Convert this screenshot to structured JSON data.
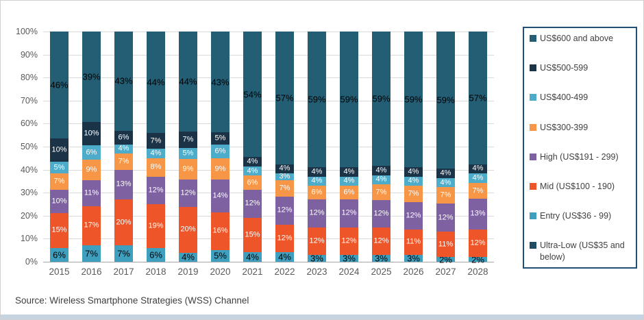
{
  "source_line": "Source: Wireless Smartphone Strategies (WSS) Channel",
  "colors": {
    "legend_border": "#1f4e79",
    "gridline": "#d9d9d9",
    "axis_line": "#a6a6a6",
    "tick_text": "#595959",
    "source_text": "#3f3f3f",
    "window_strip": "#c6d3e1"
  },
  "chart_data": {
    "type": "bar",
    "subtype": "stacked-100-percent",
    "title": "",
    "xlabel": "",
    "ylabel": "",
    "ylim": [
      0,
      100
    ],
    "grid": true,
    "legend_position": "right",
    "y_ticks": [
      "0%",
      "10%",
      "20%",
      "30%",
      "40%",
      "50%",
      "60%",
      "70%",
      "80%",
      "90%",
      "100%"
    ],
    "categories": [
      "2015",
      "2016",
      "2017",
      "2018",
      "2019",
      "2020",
      "2021",
      "2022",
      "2023",
      "2024",
      "2025",
      "2026",
      "2027",
      "2028"
    ],
    "series": [
      {
        "name": "Ultra-Low (US$35 and below)",
        "color": "#1f4c63",
        "label_color": "#ffffff",
        "values": [
          0,
          0,
          0,
          0,
          0,
          0,
          0,
          0,
          0,
          0,
          0,
          0,
          0,
          0
        ]
      },
      {
        "name": "Entry (US$36 - 99)",
        "color": "#3f9fbf",
        "label_color": "#000000",
        "values": [
          6,
          7,
          7,
          6,
          4,
          5,
          4,
          4,
          3,
          3,
          3,
          3,
          2,
          2
        ]
      },
      {
        "name": "Mid (US$100 - 190)",
        "color": "#ee5629",
        "label_color": "#ffffff",
        "values": [
          15,
          17,
          20,
          19,
          20,
          16,
          15,
          12,
          12,
          12,
          12,
          11,
          11,
          12
        ]
      },
      {
        "name": "High (US$191 - 299)",
        "color": "#7d61a0",
        "label_color": "#ffffff",
        "values": [
          10,
          11,
          13,
          12,
          12,
          14,
          12,
          12,
          12,
          12,
          12,
          12,
          12,
          13
        ]
      },
      {
        "name": "US$300-399",
        "color": "#f79646",
        "label_color": "#ffffff",
        "values": [
          7,
          9,
          7,
          8,
          9,
          9,
          6,
          7,
          6,
          6,
          7,
          7,
          7,
          7
        ]
      },
      {
        "name": "US$400-499",
        "color": "#4dacca",
        "label_color": "#ffffff",
        "values": [
          5,
          6,
          4,
          4,
          5,
          6,
          4,
          3,
          4,
          4,
          4,
          4,
          4,
          4
        ]
      },
      {
        "name": "US$500-599",
        "color": "#1b3347",
        "label_color": "#ffffff",
        "values": [
          10,
          10,
          6,
          7,
          7,
          5,
          4,
          4,
          4,
          4,
          4,
          4,
          4,
          4
        ]
      },
      {
        "name": "US$600 and above",
        "color": "#235e74",
        "label_color": "#000000",
        "values": [
          46,
          39,
          43,
          44,
          44,
          43,
          54,
          57,
          59,
          59,
          59,
          59,
          59,
          57
        ]
      }
    ],
    "legend": [
      {
        "label": "US$600 and above",
        "color": "#235e74"
      },
      {
        "label": "US$500-599",
        "color": "#1b3347"
      },
      {
        "label": "US$400-499",
        "color": "#4dacca"
      },
      {
        "label": "US$300-399",
        "color": "#f79646"
      },
      {
        "label": "High (US$191 - 299)",
        "color": "#7d61a0"
      },
      {
        "label": "Mid (US$100 - 190)",
        "color": "#ee5629"
      },
      {
        "label": "Entry (US$36 - 99)",
        "color": "#3f9fbf"
      },
      {
        "label": "Ultra-Low (US$35 and below)",
        "color": "#1f4c63"
      }
    ]
  }
}
